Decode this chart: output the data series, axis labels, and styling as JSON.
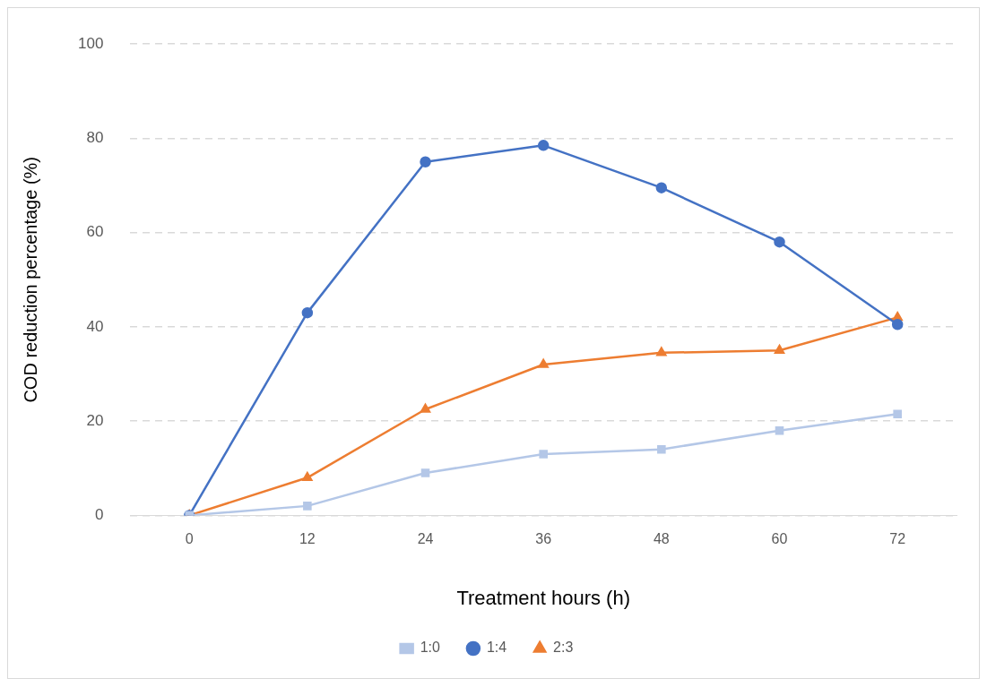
{
  "chart_data": {
    "type": "line",
    "xlabel": "Treatment hours (h)",
    "ylabel": "COD reduction percentage (%)",
    "categories": [
      "0",
      "12",
      "24",
      "36",
      "48",
      "60",
      "72"
    ],
    "series": [
      {
        "name": "1:0",
        "color": "#b4c7e7",
        "marker": "square",
        "values": [
          0,
          2,
          9,
          13,
          14,
          18,
          21.5
        ]
      },
      {
        "name": "1:4",
        "color": "#4472c4",
        "marker": "circle",
        "values": [
          0,
          43,
          75,
          78.5,
          69.5,
          58,
          40.5
        ]
      },
      {
        "name": "2:3",
        "color": "#ed7d31",
        "marker": "triangle",
        "values": [
          0,
          8,
          22.5,
          32,
          34.5,
          35,
          42
        ]
      }
    ],
    "ylim": [
      0,
      100
    ],
    "yticks": [
      0,
      20,
      40,
      60,
      80,
      100
    ],
    "grid": "y",
    "legend": "bottom"
  }
}
